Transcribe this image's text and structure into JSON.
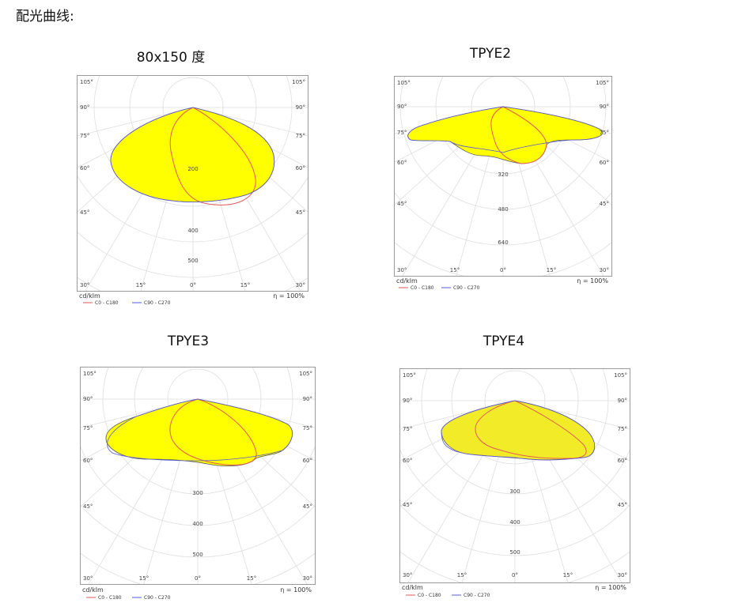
{
  "page": {
    "title": "配光曲线:"
  },
  "charts": [
    {
      "id": "c1",
      "title": "80x150 度",
      "unit": "cd/klm",
      "efficiency": "η = 100%",
      "legend": [
        "C0 - C180",
        "C90 - C270"
      ],
      "angle_labels": {
        "left": [
          "105°",
          "90°",
          "75°",
          "60°",
          "45°",
          "30°"
        ],
        "right": [
          "105°",
          "90°",
          "75°",
          "60°",
          "45°",
          "30°"
        ],
        "bottom": [
          "30°",
          "15°",
          "0°",
          "15°",
          "30°"
        ]
      },
      "radial_labels": [
        "200",
        "400",
        "500"
      ]
    },
    {
      "id": "c2",
      "title": "TPYE2",
      "unit": "cd/klm",
      "efficiency": "η = 100%",
      "legend": [
        "C0 - C180",
        "C90 - C270"
      ],
      "angle_labels": {
        "left": [
          "105°",
          "90°",
          "75°",
          "60°",
          "45°",
          "30°"
        ],
        "right": [
          "105°",
          "90°",
          "75°",
          "60°",
          "45°",
          "30°"
        ],
        "bottom": [
          "30°",
          "15°",
          "0°",
          "15°",
          "30°"
        ]
      },
      "radial_labels": [
        "320",
        "480",
        "640"
      ]
    },
    {
      "id": "c3",
      "title": "TPYE3",
      "unit": "cd/klm",
      "efficiency": "η = 100%",
      "legend": [
        "C0 - C180",
        "C90 - C270"
      ],
      "angle_labels": {
        "left": [
          "105°",
          "90°",
          "75°",
          "60°",
          "45°",
          "30°"
        ],
        "right": [
          "105°",
          "90°",
          "75°",
          "60°",
          "45°",
          "30°"
        ],
        "bottom": [
          "30°",
          "15°",
          "0°",
          "15°",
          "30°"
        ]
      },
      "radial_labels": [
        "300",
        "400",
        "500"
      ]
    },
    {
      "id": "c4",
      "title": "TPYE4",
      "unit": "cd/klm",
      "efficiency": "η = 100%",
      "legend": [
        "C0 - C180",
        "C90 - C270"
      ],
      "angle_labels": {
        "left": [
          "105°",
          "90°",
          "75°",
          "60°",
          "45°",
          "30°"
        ],
        "right": [
          "105°",
          "90°",
          "75°",
          "60°",
          "45°",
          "30°"
        ],
        "bottom": [
          "30°",
          "15°",
          "0°",
          "15°",
          "30°"
        ]
      },
      "radial_labels": [
        "300",
        "400",
        "500"
      ]
    }
  ],
  "colors": {
    "fill": "#ffff00",
    "fill_c4": "#f2ec28",
    "c0_curve": "#e05a5a",
    "c90_curve": "#5a5ad8",
    "grid": "#dddddd",
    "outline": "#777777"
  },
  "chart_data": [
    {
      "type": "polar",
      "title": "80x150 度",
      "series": [
        {
          "name": "C0 - C180"
        },
        {
          "name": "C90 - C270"
        }
      ]
    },
    {
      "type": "polar",
      "title": "TPYE2",
      "series": [
        {
          "name": "C0 - C180"
        },
        {
          "name": "C90 - C270"
        }
      ]
    },
    {
      "type": "polar",
      "title": "TPYE3",
      "series": [
        {
          "name": "C0 - C180"
        },
        {
          "name": "C90 - C270"
        }
      ]
    },
    {
      "type": "polar",
      "title": "TPYE4",
      "series": [
        {
          "name": "C0 - C180"
        },
        {
          "name": "C90 - C270"
        }
      ]
    }
  ]
}
